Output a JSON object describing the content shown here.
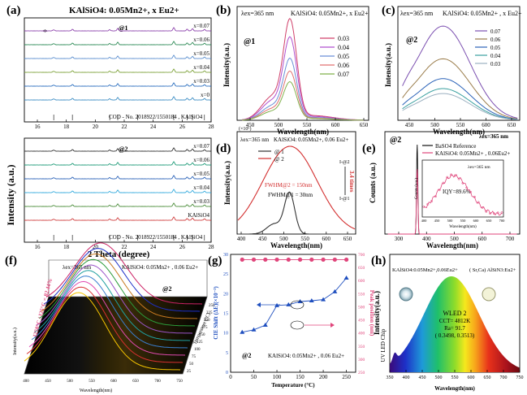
{
  "chart_data": [
    {
      "panel": "(a)",
      "type": "line",
      "title": "KAlSiO4: 0.05Mn2+, x Eu2+",
      "ylabel": "Intensity (a.u.)",
      "xlabel": "2 Theta (degree)",
      "xlim": [
        14,
        28
      ],
      "xticks": [
        "16",
        "18",
        "20",
        "22",
        "24",
        "26",
        "28"
      ],
      "sub_top": {
        "tag": "@1",
        "series": [
          {
            "name": "x=0.07",
            "color": "#8e44ad"
          },
          {
            "name": "x=0.06",
            "color": "#2e8b57"
          },
          {
            "name": "x=0.05",
            "color": "#5b8fcf"
          },
          {
            "name": "x=0.04",
            "color": "#7fa33c"
          },
          {
            "name": "x=0.03",
            "color": "#2c6fbf"
          },
          {
            "name": "x=0",
            "color": "#3c8dc4"
          }
        ],
        "reference": "COD - No. 2018922/1550184 , KAlSiO4",
        "impurity_marker": "*"
      },
      "sub_bottom": {
        "tag": "@2",
        "series": [
          {
            "name": "x=0.07",
            "color": "#333333"
          },
          {
            "name": "x=0.06",
            "color": "#1e9b78"
          },
          {
            "name": "x=0.05",
            "color": "#2a62b8"
          },
          {
            "name": "x=0.04",
            "color": "#33aadd"
          },
          {
            "name": "x=0.03",
            "color": "#4b8d3a"
          },
          {
            "name": "KAlSiO4",
            "color": "#d04040"
          }
        ],
        "reference": "COD - No. 2018922/1550184 , KAlSiO4"
      }
    },
    {
      "panel": "(b)",
      "type": "line",
      "title": "KAlSiO4: 0.05Mn2+, x Eu2+",
      "excitation": "λex=365 nm",
      "tag": "@1",
      "xlabel": "Wavelength(nm)",
      "ylabel": "Intensity(a.u.)",
      "xlim": [
        410,
        670
      ],
      "xticks": [
        "450",
        "500",
        "550",
        "600",
        "650"
      ],
      "series": [
        {
          "name": "0.03",
          "color": "#d0406a",
          "peak": 0.95
        },
        {
          "name": "0.04",
          "color": "#b04fcf",
          "peak": 0.78
        },
        {
          "name": "0.05",
          "color": "#6a8fd6",
          "peak": 0.58
        },
        {
          "name": "0.06",
          "color": "#e07070",
          "peak": 0.46
        },
        {
          "name": "0.07",
          "color": "#7fb04a",
          "peak": 0.36
        }
      ]
    },
    {
      "panel": "(c)",
      "type": "line",
      "title": "KAlSiO4: 0.05Mn2+ , x Eu2+",
      "excitation": "λex=365 nm",
      "tag": "@2",
      "xlabel": "Wavelength(nm)",
      "ylabel": "Intensity(a.u.)",
      "xlim": [
        410,
        680
      ],
      "xticks": [
        "450",
        "500",
        "550",
        "600",
        "650"
      ],
      "series": [
        {
          "name": "0.07",
          "color": "#7b4fb0",
          "peak": 0.95
        },
        {
          "name": "0.06",
          "color": "#9a7c4a",
          "peak": 0.62
        },
        {
          "name": "0.05",
          "color": "#2a62b8",
          "peak": 0.42
        },
        {
          "name": "0.04",
          "color": "#3aa0a0",
          "peak": 0.32
        },
        {
          "name": "0.03",
          "color": "#9bb0c0",
          "peak": 0.27
        }
      ]
    },
    {
      "panel": "(d)",
      "type": "line",
      "title": "KAlSiO4: 0.05Mn2+, 0.06 Eu2+",
      "excitation": "λex=365 nm",
      "scale": "(×10⁶)",
      "xlabel": "Wavelength(nm)",
      "ylabel": "Intensity(a.u.)",
      "xlim": [
        390,
        670
      ],
      "xticks": [
        "400",
        "450",
        "500",
        "550",
        "600",
        "650"
      ],
      "series": [
        {
          "name": "@ 1",
          "color": "#333333",
          "peak_nm": 515,
          "fwhm_nm": 30
        },
        {
          "name": "@ 2",
          "color": "#d32f2f",
          "peak_nm": 515,
          "fwhm_nm": 150
        }
      ],
      "annotations": [
        "FWHM@2 = 150nm",
        "FWHM@1 = 30nm",
        "3.4 times",
        "I-@2",
        "I-@1"
      ]
    },
    {
      "panel": "(e)",
      "type": "line",
      "tag": "@2",
      "excitation": "λex=365 nm",
      "xlabel": "Wavelength(nm)",
      "ylabel": "Counts (a.u.)",
      "xlim": [
        250,
        730
      ],
      "xticks": [
        "300",
        "400",
        "500",
        "600",
        "700"
      ],
      "series": [
        {
          "name": "BaSO4 Reference",
          "color": "#111111"
        },
        {
          "name": "KAlSiO4: 0.05Mn2+ , 0.06Eu2+",
          "color": "#e0457b"
        }
      ],
      "inset": {
        "excitation": "λex=365 nm",
        "text": "IQY=89.6%",
        "ylabel": "Counts (a.u.)",
        "xlabel": "Wavelength(nm)",
        "xticks": [
          "400",
          "450",
          "500",
          "550",
          "600",
          "650",
          "700"
        ]
      }
    },
    {
      "panel": "(f)",
      "type": "area",
      "title": "KAlSiO4: 0.05Mn2+ , 0.06 Eu2+",
      "excitation": "λex=365 nm",
      "tag": "@2",
      "xlabel": "Wavelength(nm)",
      "ylabel": "Intensity(a.u.)",
      "zlabel": "Temperature (°C)",
      "xticks": [
        "400",
        "450",
        "500",
        "550",
        "600",
        "650",
        "700",
        "750"
      ],
      "zticks": [
        "25",
        "50",
        "75",
        "100",
        "125",
        "150",
        "175",
        "200",
        "225",
        "250"
      ],
      "annotation": "I250°C / I25°C = 82.44%"
    },
    {
      "panel": "(g)",
      "type": "line",
      "title": "KAlSiO4: 0.05Mn2+ , 0.06 Eu2+",
      "tag": "@2",
      "xlabel": "Temperature (°C)",
      "ylabel": "CIE Shift (ΔΕ)(×10⁻³)",
      "y2label": "Peak position (nm)",
      "xlim": [
        0,
        270
      ],
      "ylim": [
        0,
        30
      ],
      "y2lim": [
        250,
        700
      ],
      "xticks": [
        "0",
        "50",
        "100",
        "150",
        "200",
        "250"
      ],
      "yticks": [
        "0",
        "5",
        "10",
        "15",
        "20",
        "25",
        "30"
      ],
      "y2ticks": [
        "250",
        "300",
        "350",
        "400",
        "450",
        "500",
        "550",
        "600",
        "650",
        "700"
      ],
      "series": [
        {
          "name": "CIE Shift",
          "color": "#1f4fbf",
          "x": [
            25,
            50,
            75,
            100,
            125,
            150,
            175,
            200,
            225,
            250
          ],
          "y": [
            10.2,
            10.8,
            12.0,
            17.0,
            17.2,
            18.0,
            18.2,
            18.5,
            20.5,
            24.0
          ]
        },
        {
          "name": "Peak position",
          "color": "#e0457b",
          "x": [
            25,
            50,
            75,
            100,
            125,
            150,
            175,
            200,
            225,
            250
          ],
          "y": [
            680,
            680,
            680,
            680,
            680,
            680,
            680,
            680,
            680,
            680
          ]
        }
      ]
    },
    {
      "panel": "(h)",
      "type": "area",
      "title": "KAlSiO4:0.05Mn2+,0.06Eu2+",
      "title2": "( Sr,Ca) AlSiN3:Eu2+",
      "side_label": "UV LED Chip",
      "xlabel": "Wavelength(nm)",
      "ylabel": "Intensity(a.u.)",
      "xlim": [
        350,
        750
      ],
      "xticks": [
        "350",
        "400",
        "450",
        "500",
        "550",
        "600",
        "650",
        "700",
        "750"
      ],
      "legend": [
        "WLED 2",
        "CCT= 4812K",
        "Ra= 91.7",
        "( 0.3498, 0.3513)"
      ]
    }
  ]
}
